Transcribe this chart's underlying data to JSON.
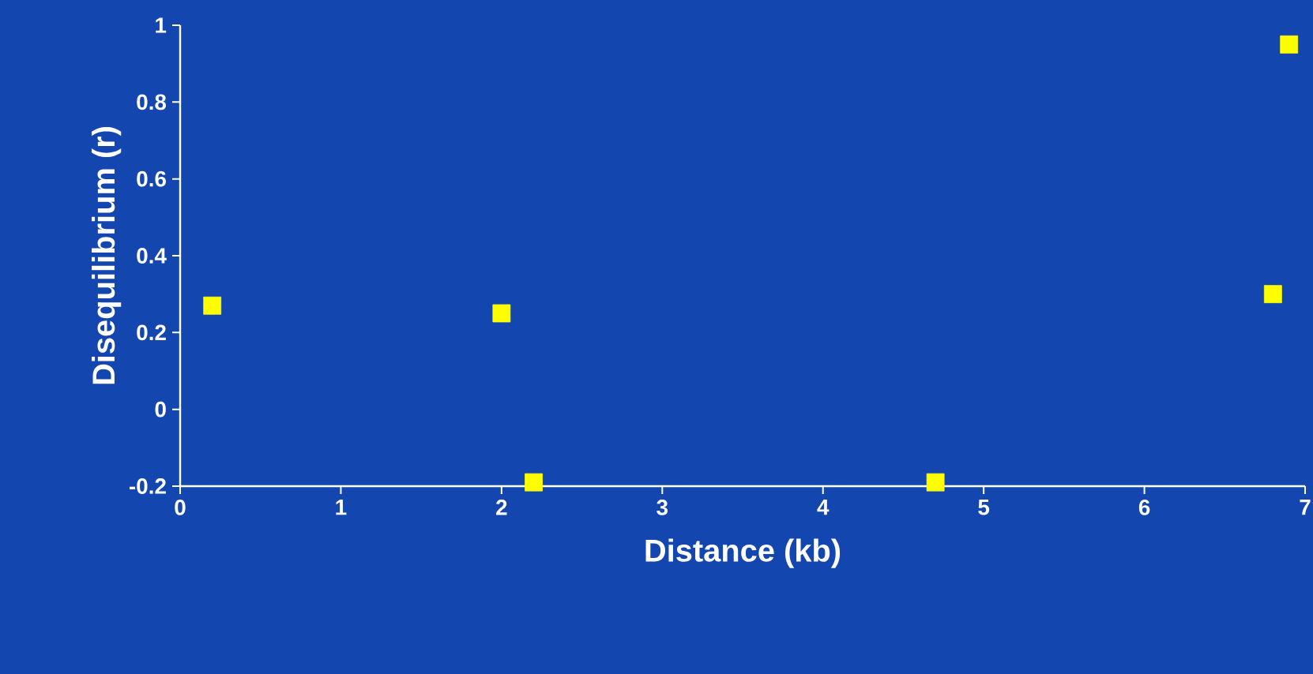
{
  "chart_data": {
    "type": "scatter",
    "xlabel": "Distance (kb)",
    "ylabel": "Disequilibrium (r)",
    "x": [
      0.2,
      2.0,
      2.2,
      4.7,
      6.8,
      6.9
    ],
    "series": [
      {
        "color": "#ffff00",
        "values": [
          0.27,
          0.25,
          -0.19,
          -0.19,
          0.3,
          0.95
        ]
      }
    ],
    "xlim": [
      0,
      7
    ],
    "ylim": [
      -0.2,
      1
    ],
    "xticks": [
      0,
      1,
      2,
      3,
      4,
      5,
      6,
      7
    ],
    "yticks": [
      -0.2,
      0,
      0.2,
      0.4,
      0.6,
      0.8,
      1
    ],
    "marker": "square"
  }
}
